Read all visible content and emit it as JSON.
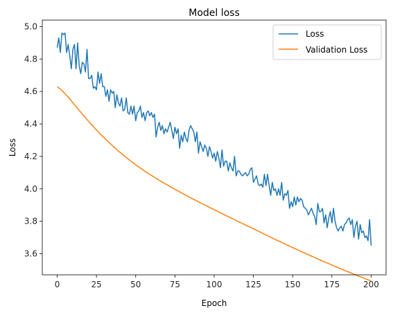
{
  "chart_data": {
    "type": "line",
    "title": "Model loss",
    "xlabel": "Epoch",
    "ylabel": "Loss",
    "xlim": [
      -9.5,
      209.5
    ],
    "ylim": [
      3.47,
      5.04
    ],
    "xticks": [
      0,
      25,
      50,
      75,
      100,
      125,
      150,
      175,
      200
    ],
    "yticks": [
      3.6,
      3.8,
      4.0,
      4.2,
      4.4,
      4.6,
      4.8,
      5.0
    ],
    "yticks_labels": [
      "3.6",
      "3.8",
      "4.0",
      "4.2",
      "4.4",
      "4.6",
      "4.8",
      "5.0"
    ],
    "grid": false,
    "legend_position": "top-right",
    "series": [
      {
        "name": "Loss",
        "color": "#1f77b4",
        "values": [
          4.87,
          4.93,
          4.84,
          4.96,
          4.95,
          4.96,
          4.84,
          4.89,
          4.82,
          4.74,
          4.86,
          4.89,
          4.74,
          4.9,
          4.76,
          4.71,
          4.78,
          4.77,
          4.72,
          4.86,
          4.68,
          4.68,
          4.7,
          4.62,
          4.63,
          4.61,
          4.72,
          4.65,
          4.71,
          4.63,
          4.63,
          4.57,
          4.61,
          4.54,
          4.61,
          4.59,
          4.6,
          4.5,
          4.58,
          4.53,
          4.51,
          4.56,
          4.48,
          4.49,
          4.56,
          4.47,
          4.46,
          4.51,
          4.46,
          4.51,
          4.42,
          4.47,
          4.48,
          4.51,
          4.44,
          4.47,
          4.42,
          4.47,
          4.48,
          4.45,
          4.47,
          4.44,
          4.46,
          4.32,
          4.38,
          4.41,
          4.36,
          4.39,
          4.34,
          4.37,
          4.35,
          4.38,
          4.41,
          4.36,
          4.31,
          4.38,
          4.34,
          4.37,
          4.25,
          4.33,
          4.29,
          4.35,
          4.31,
          4.29,
          4.36,
          4.39,
          4.37,
          4.35,
          4.29,
          4.35,
          4.22,
          4.29,
          4.26,
          4.23,
          4.27,
          4.25,
          4.2,
          4.26,
          4.23,
          4.19,
          4.22,
          4.17,
          4.23,
          4.19,
          4.13,
          4.24,
          4.14,
          4.17,
          4.17,
          4.11,
          4.16,
          4.13,
          4.11,
          4.2,
          4.08,
          4.11,
          4.11,
          4.09,
          4.08,
          4.09,
          4.1,
          4.08,
          4.09,
          4.12,
          4.13,
          4.04,
          4.06,
          4.08,
          4.03,
          4.02,
          4.03,
          4.01,
          4.09,
          4.02,
          4.09,
          4.02,
          3.96,
          4.04,
          3.99,
          4.0,
          3.96,
          4.0,
          3.96,
          4.04,
          3.93,
          3.97,
          3.96,
          3.99,
          3.88,
          3.92,
          3.89,
          3.95,
          3.9,
          3.95,
          3.92,
          3.94,
          3.93,
          3.89,
          3.88,
          3.87,
          3.84,
          3.86,
          3.88,
          3.85,
          3.83,
          3.78,
          3.91,
          3.86,
          3.86,
          3.88,
          3.79,
          3.84,
          3.76,
          3.82,
          3.86,
          3.79,
          3.88,
          3.8,
          3.76,
          3.74,
          3.76,
          3.77,
          3.74,
          3.78,
          3.79,
          3.81,
          3.82,
          3.78,
          3.81,
          3.7,
          3.77,
          3.8,
          3.69,
          3.78,
          3.73,
          3.74,
          3.7,
          3.71,
          3.68,
          3.81,
          3.65
        ]
      },
      {
        "name": "Validation Loss",
        "color": "#ff7f0e",
        "values": [
          4.63,
          4.622,
          4.614,
          4.606,
          4.596,
          4.586,
          4.576,
          4.566,
          4.554,
          4.542,
          4.531,
          4.519,
          4.507,
          4.496,
          4.484,
          4.472,
          4.461,
          4.45,
          4.438,
          4.427,
          4.416,
          4.405,
          4.394,
          4.384,
          4.373,
          4.363,
          4.353,
          4.343,
          4.333,
          4.323,
          4.314,
          4.304,
          4.295,
          4.286,
          4.277,
          4.268,
          4.259,
          4.25,
          4.242,
          4.233,
          4.225,
          4.217,
          4.209,
          4.201,
          4.193,
          4.185,
          4.178,
          4.17,
          4.163,
          4.156,
          4.148,
          4.141,
          4.135,
          4.128,
          4.121,
          4.114,
          4.108,
          4.102,
          4.095,
          4.089,
          4.083,
          4.077,
          4.071,
          4.065,
          4.059,
          4.053,
          4.047,
          4.041,
          4.036,
          4.03,
          4.025,
          4.019,
          4.013,
          4.008,
          4.003,
          3.997,
          3.992,
          3.987,
          3.981,
          3.976,
          3.971,
          3.966,
          3.961,
          3.955,
          3.95,
          3.945,
          3.94,
          3.935,
          3.93,
          3.925,
          3.92,
          3.915,
          3.91,
          3.905,
          3.901,
          3.896,
          3.891,
          3.886,
          3.881,
          3.876,
          3.872,
          3.867,
          3.862,
          3.857,
          3.852,
          3.848,
          3.843,
          3.838,
          3.833,
          3.829,
          3.824,
          3.819,
          3.815,
          3.81,
          3.805,
          3.8,
          3.796,
          3.791,
          3.786,
          3.782,
          3.777,
          3.772,
          3.768,
          3.763,
          3.758,
          3.754,
          3.749,
          3.744,
          3.74,
          3.735,
          3.73,
          3.725,
          3.721,
          3.716,
          3.711,
          3.707,
          3.702,
          3.697,
          3.693,
          3.688,
          3.683,
          3.679,
          3.674,
          3.67,
          3.665,
          3.661,
          3.656,
          3.652,
          3.647,
          3.643,
          3.638,
          3.634,
          3.629,
          3.625,
          3.62,
          3.616,
          3.611,
          3.607,
          3.603,
          3.598,
          3.594,
          3.59,
          3.585,
          3.581,
          3.577,
          3.572,
          3.568,
          3.564,
          3.56,
          3.555,
          3.551,
          3.547,
          3.543,
          3.539,
          3.535,
          3.53,
          3.526,
          3.522,
          3.518,
          3.514,
          3.51,
          3.506,
          3.502,
          3.498,
          3.494,
          3.49,
          3.486,
          3.482,
          3.478,
          3.474,
          3.47,
          3.466,
          3.462,
          3.459,
          3.455,
          3.451,
          3.447,
          3.443,
          3.44,
          3.436,
          3.432
        ]
      }
    ]
  }
}
